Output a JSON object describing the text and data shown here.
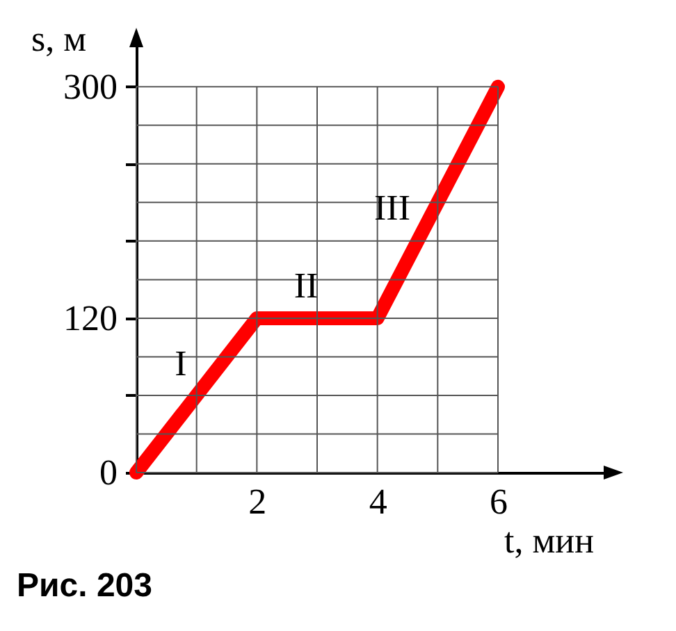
{
  "chart_data": {
    "type": "line",
    "xlabel": "t, мин",
    "ylabel": "s, м",
    "x": [
      0,
      2,
      4,
      6
    ],
    "series": [
      {
        "color": "#ff0000",
        "values": [
          0,
          120,
          120,
          300
        ]
      }
    ],
    "xlim": [
      0,
      7.8
    ],
    "ylim": [
      0,
      335
    ],
    "xticks": [
      {
        "value": 0,
        "label": null
      },
      {
        "value": 1,
        "label": null
      },
      2,
      {
        "value": 3,
        "label": null
      },
      4,
      {
        "value": 5,
        "label": null
      },
      6
    ],
    "yticks": [
      0,
      {
        "value": 30,
        "label": null
      },
      {
        "value": 60,
        "label": null
      },
      {
        "value": 90,
        "label": null
      },
      120,
      {
        "value": 150,
        "label": null
      },
      {
        "value": 180,
        "label": null
      },
      {
        "value": 210,
        "label": null
      },
      {
        "value": 240,
        "label": null
      },
      {
        "value": 270,
        "label": null
      },
      300
    ],
    "grid": true,
    "line_style": "solid",
    "annotations": [
      "I",
      "II",
      "III",
      "Рис. 203"
    ]
  }
}
